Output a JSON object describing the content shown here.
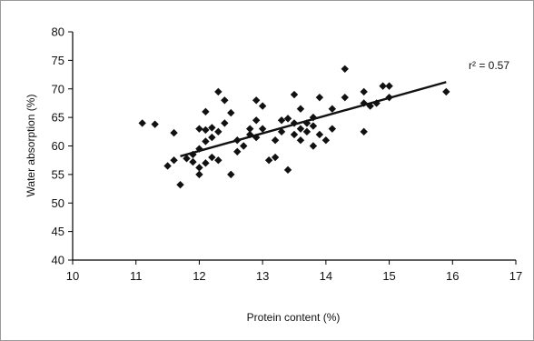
{
  "chart_data": {
    "type": "scatter",
    "title": "",
    "xlabel": "Protein content (%)",
    "ylabel": "Water absorption (%)",
    "xlim": [
      10,
      17
    ],
    "ylim": [
      40,
      80
    ],
    "xticks": [
      "10",
      "11",
      "12",
      "13",
      "14",
      "15",
      "16",
      "17"
    ],
    "yticks": [
      "40",
      "45",
      "50",
      "55",
      "60",
      "65",
      "70",
      "75",
      "80"
    ],
    "grid": false,
    "legend": "none",
    "marker_color": "#111111",
    "trendline": {
      "x": [
        11.7,
        15.9
      ],
      "y": [
        58.2,
        71.2
      ],
      "color": "#111111"
    },
    "annotation": {
      "text": "r² = 0.57"
    },
    "points": [
      {
        "x": 11.1,
        "y": 64.0
      },
      {
        "x": 11.3,
        "y": 63.8
      },
      {
        "x": 11.5,
        "y": 56.5
      },
      {
        "x": 11.6,
        "y": 62.3
      },
      {
        "x": 11.6,
        "y": 57.5
      },
      {
        "x": 11.7,
        "y": 53.2
      },
      {
        "x": 11.8,
        "y": 57.8
      },
      {
        "x": 11.9,
        "y": 58.5
      },
      {
        "x": 11.9,
        "y": 57.2
      },
      {
        "x": 12.0,
        "y": 55.0
      },
      {
        "x": 12.0,
        "y": 56.2
      },
      {
        "x": 12.0,
        "y": 59.5
      },
      {
        "x": 12.0,
        "y": 63.0
      },
      {
        "x": 12.1,
        "y": 57.0
      },
      {
        "x": 12.1,
        "y": 60.8
      },
      {
        "x": 12.1,
        "y": 62.8
      },
      {
        "x": 12.1,
        "y": 66.0
      },
      {
        "x": 12.2,
        "y": 58.0
      },
      {
        "x": 12.2,
        "y": 61.5
      },
      {
        "x": 12.2,
        "y": 63.2
      },
      {
        "x": 12.3,
        "y": 69.5
      },
      {
        "x": 12.3,
        "y": 57.5
      },
      {
        "x": 12.3,
        "y": 62.5
      },
      {
        "x": 12.4,
        "y": 64.0
      },
      {
        "x": 12.4,
        "y": 68.0
      },
      {
        "x": 12.5,
        "y": 55.0
      },
      {
        "x": 12.5,
        "y": 65.8
      },
      {
        "x": 12.6,
        "y": 59.0
      },
      {
        "x": 12.6,
        "y": 61.0
      },
      {
        "x": 12.7,
        "y": 60.0
      },
      {
        "x": 12.8,
        "y": 62.0
      },
      {
        "x": 12.8,
        "y": 63.0
      },
      {
        "x": 12.9,
        "y": 68.0
      },
      {
        "x": 12.9,
        "y": 64.5
      },
      {
        "x": 12.9,
        "y": 61.5
      },
      {
        "x": 13.0,
        "y": 67.0
      },
      {
        "x": 13.0,
        "y": 63.0
      },
      {
        "x": 13.1,
        "y": 57.5
      },
      {
        "x": 13.2,
        "y": 58.0
      },
      {
        "x": 13.2,
        "y": 61.0
      },
      {
        "x": 13.3,
        "y": 64.5
      },
      {
        "x": 13.3,
        "y": 62.5
      },
      {
        "x": 13.4,
        "y": 55.8
      },
      {
        "x": 13.4,
        "y": 64.8
      },
      {
        "x": 13.5,
        "y": 69.0
      },
      {
        "x": 13.5,
        "y": 62.0
      },
      {
        "x": 13.5,
        "y": 64.0
      },
      {
        "x": 13.6,
        "y": 66.5
      },
      {
        "x": 13.6,
        "y": 63.0
      },
      {
        "x": 13.6,
        "y": 61.0
      },
      {
        "x": 13.7,
        "y": 62.5
      },
      {
        "x": 13.7,
        "y": 64.0
      },
      {
        "x": 13.8,
        "y": 65.0
      },
      {
        "x": 13.8,
        "y": 60.0
      },
      {
        "x": 13.8,
        "y": 63.5
      },
      {
        "x": 13.9,
        "y": 68.5
      },
      {
        "x": 13.9,
        "y": 62.0
      },
      {
        "x": 14.0,
        "y": 61.0
      },
      {
        "x": 14.1,
        "y": 66.5
      },
      {
        "x": 14.1,
        "y": 63.0
      },
      {
        "x": 14.3,
        "y": 73.5
      },
      {
        "x": 14.3,
        "y": 68.5
      },
      {
        "x": 14.6,
        "y": 69.5
      },
      {
        "x": 14.6,
        "y": 67.5
      },
      {
        "x": 14.6,
        "y": 62.5
      },
      {
        "x": 14.7,
        "y": 67.0
      },
      {
        "x": 14.8,
        "y": 67.5
      },
      {
        "x": 14.9,
        "y": 70.5
      },
      {
        "x": 15.0,
        "y": 70.5
      },
      {
        "x": 15.0,
        "y": 68.5
      },
      {
        "x": 15.9,
        "y": 69.5
      }
    ]
  }
}
